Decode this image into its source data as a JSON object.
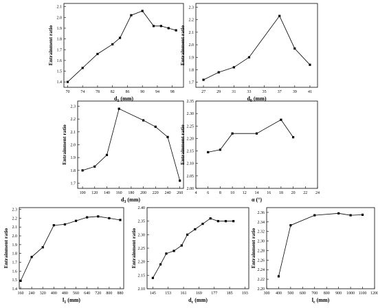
{
  "chart_data": [
    {
      "type": "line",
      "xlabel": "d1 (mm)",
      "ylabel": "Entrainment ratio",
      "x": [
        70,
        74,
        78,
        82,
        84,
        87,
        90,
        93,
        95,
        97,
        99
      ],
      "y": [
        1.4,
        1.53,
        1.66,
        1.75,
        1.81,
        2.02,
        2.06,
        1.92,
        1.92,
        1.9,
        1.88
      ],
      "xticks": [
        70,
        74,
        78,
        82,
        86,
        90,
        94,
        98
      ],
      "yticks": [
        1.4,
        1.5,
        1.6,
        1.7,
        1.8,
        1.9,
        2.0,
        2.1
      ],
      "xlim": [
        69,
        101
      ],
      "ylim": [
        1.35,
        2.13
      ],
      "grid": false
    },
    {
      "type": "line",
      "xlabel": "d0 (mm)",
      "ylabel": "Entrainment ratio",
      "x": [
        27,
        29,
        31,
        33,
        37,
        39,
        41
      ],
      "y": [
        1.72,
        1.78,
        1.82,
        1.9,
        2.23,
        1.97,
        1.84
      ],
      "xticks": [
        27,
        29,
        31,
        33,
        35,
        37,
        39,
        41
      ],
      "yticks": [
        1.7,
        1.8,
        1.9,
        2.0,
        2.1,
        2.2,
        2.3
      ],
      "xlim": [
        26,
        42
      ],
      "ylim": [
        1.66,
        2.33
      ],
      "grid": false
    },
    {
      "type": "line",
      "xlabel": "d3 (mm)",
      "ylabel": "Entrainment ratio",
      "x": [
        100,
        120,
        140,
        160,
        200,
        220,
        240,
        260
      ],
      "y": [
        1.8,
        1.83,
        1.92,
        2.28,
        2.19,
        2.14,
        2.06,
        1.72
      ],
      "xticks": [
        100,
        120,
        140,
        160,
        180,
        200,
        220,
        240,
        260
      ],
      "yticks": [
        1.7,
        1.8,
        1.9,
        2.0,
        2.1,
        2.2,
        2.3
      ],
      "xlim": [
        92,
        266
      ],
      "ylim": [
        1.66,
        2.34
      ],
      "grid": false
    },
    {
      "type": "line",
      "xlabel": "α (°)",
      "ylabel": "Entrainment ratio",
      "x": [
        6,
        8,
        10,
        14,
        18,
        20
      ],
      "y": [
        2.145,
        2.155,
        2.22,
        2.22,
        2.275,
        2.205
      ],
      "xticks": [
        4,
        6,
        8,
        10,
        12,
        14,
        16,
        18,
        20,
        22,
        24
      ],
      "yticks": [
        2.0,
        2.05,
        2.1,
        2.15,
        2.2,
        2.25,
        2.3,
        2.35
      ],
      "xlim": [
        4,
        24
      ],
      "ylim": [
        2.0,
        2.35
      ],
      "grid": false
    },
    {
      "type": "line",
      "xlabel": "l1 (mm)",
      "ylabel": "Entrainment ratio",
      "x": [
        160,
        240,
        320,
        400,
        480,
        560,
        640,
        720,
        800,
        880
      ],
      "y": [
        1.49,
        1.76,
        1.87,
        2.12,
        2.13,
        2.17,
        2.21,
        2.22,
        2.2,
        2.18
      ],
      "xticks": [
        160,
        240,
        320,
        400,
        480,
        560,
        640,
        720,
        800,
        880
      ],
      "yticks": [
        1.4,
        1.5,
        1.6,
        1.7,
        1.8,
        1.9,
        2.0,
        2.1,
        2.2,
        2.3
      ],
      "xlim": [
        150,
        905
      ],
      "ylim": [
        1.4,
        2.32
      ],
      "grid": false
    },
    {
      "type": "line",
      "xlabel": "dc (mm)",
      "ylabel": "Entrainment ratio",
      "x": [
        145,
        149,
        152,
        156,
        160,
        163,
        167,
        171,
        175,
        179,
        183,
        187
      ],
      "y": [
        2.14,
        2.19,
        2.23,
        2.24,
        2.26,
        2.3,
        2.32,
        2.34,
        2.36,
        2.35,
        2.35,
        2.35
      ],
      "xticks": [
        145,
        153,
        161,
        169,
        177,
        185,
        193
      ],
      "yticks": [
        2.1,
        2.15,
        2.2,
        2.25,
        2.3,
        2.35,
        2.4
      ],
      "xlim": [
        142,
        195
      ],
      "ylim": [
        2.1,
        2.4
      ],
      "grid": false
    },
    {
      "type": "line",
      "xlabel": "lc (mm)",
      "ylabel": "Entrainment ratio",
      "x": [
        400,
        500,
        700,
        900,
        1000,
        1100
      ],
      "y": [
        2.226,
        2.333,
        2.354,
        2.358,
        2.354,
        2.355
      ],
      "xticks": [
        300,
        400,
        500,
        600,
        700,
        800,
        900,
        1000,
        1100,
        1200
      ],
      "yticks": [
        2.2,
        2.22,
        2.24,
        2.26,
        2.28,
        2.3,
        2.32,
        2.34,
        2.36
      ],
      "xlim": [
        300,
        1200
      ],
      "ylim": [
        2.2,
        2.37
      ],
      "grid": false
    }
  ],
  "labels": {
    "ylabel": "Entrainment ratio",
    "x_main": [
      "d",
      "d",
      "d",
      "α (°)",
      "l",
      "d",
      "l"
    ],
    "x_sub": [
      "1",
      "0",
      "3",
      "",
      "1",
      "c",
      "c"
    ],
    "x_unit": [
      " (mm)",
      " (mm)",
      " (mm)",
      "",
      " (mm)",
      " (mm)",
      " (mm)"
    ]
  }
}
